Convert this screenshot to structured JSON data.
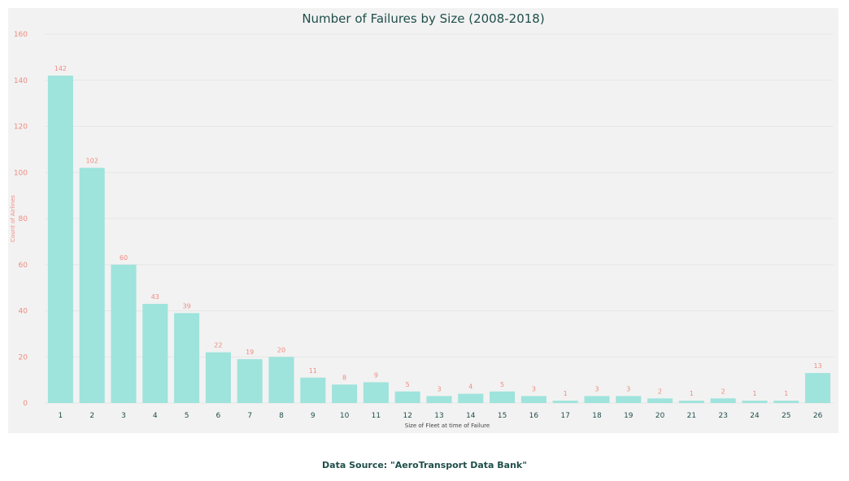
{
  "chart_data": {
    "type": "bar",
    "title": "Number of Failures by Size (2008-2018)",
    "xlabel": "Size of Fleet at time of Failure",
    "ylabel": "Count of Airlines",
    "ylim": [
      0,
      160
    ],
    "yticks": [
      0,
      20,
      40,
      60,
      80,
      100,
      120,
      140,
      160
    ],
    "grid": true,
    "categories": [
      "1",
      "2",
      "3",
      "4",
      "5",
      "6",
      "7",
      "8",
      "9",
      "10",
      "11",
      "12",
      "13",
      "14",
      "15",
      "16",
      "17",
      "18",
      "19",
      "20",
      "21",
      "23",
      "24",
      "25",
      "26"
    ],
    "values": [
      142,
      102,
      60,
      43,
      39,
      22,
      19,
      20,
      11,
      8,
      9,
      5,
      3,
      4,
      5,
      3,
      1,
      3,
      3,
      2,
      1,
      2,
      1,
      1,
      13
    ],
    "colors": {
      "bar": "#9ee3dc",
      "data_label": "#f08b80",
      "y_tick": "#f08b80",
      "x_tick": "#1f4e4a",
      "grid": "#e6e6e6",
      "title": "#1f4e4a"
    }
  },
  "footer": {
    "source": "Data Source: \"AeroTransport Data Bank\""
  }
}
